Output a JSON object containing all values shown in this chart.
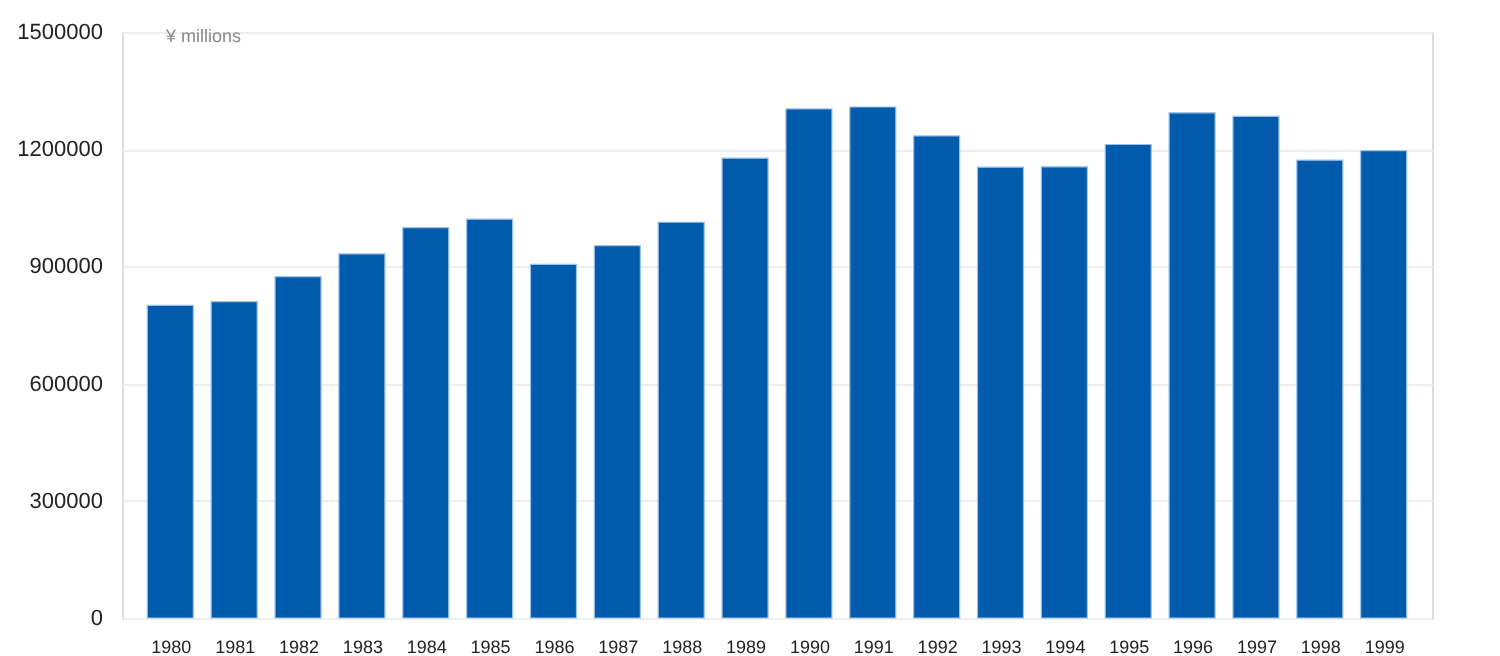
{
  "chart_data": {
    "type": "bar",
    "annotations": [
      "¥ millions"
    ],
    "categories": [
      "1980",
      "1981",
      "1982",
      "1983",
      "1984",
      "1985",
      "1986",
      "1987",
      "1988",
      "1989",
      "1990",
      "1991",
      "1992",
      "1993",
      "1994",
      "1995",
      "1996",
      "1997",
      "1998",
      "1999"
    ],
    "values": [
      800000,
      810000,
      874000,
      932000,
      999000,
      1021000,
      905000,
      953000,
      1013000,
      1177000,
      1303000,
      1308000,
      1234000,
      1154000,
      1155000,
      1212000,
      1293000,
      1284000,
      1172000,
      1196000
    ],
    "color": "#005bac",
    "ylim": [
      0,
      1500000
    ],
    "yticks": [
      0,
      300000,
      600000,
      900000,
      1200000,
      1500000
    ],
    "grid": "y"
  }
}
